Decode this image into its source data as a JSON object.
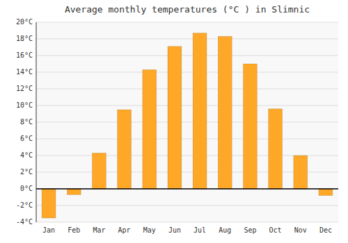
{
  "chart_data": {
    "type": "bar",
    "title": "Average monthly temperatures (°C ) in Slimnic",
    "categories": [
      "Jan",
      "Feb",
      "Mar",
      "Apr",
      "May",
      "Jun",
      "Jul",
      "Aug",
      "Sep",
      "Oct",
      "Nov",
      "Dec"
    ],
    "values": [
      -3.5,
      -0.7,
      4.3,
      9.5,
      14.3,
      17.1,
      18.7,
      18.3,
      15.0,
      9.6,
      4.0,
      -0.8
    ],
    "color": "#FFA726",
    "ylim": [
      -4,
      20
    ],
    "yticks": [
      {
        "value": -4,
        "label": "-4°C"
      },
      {
        "value": -2,
        "label": "-2°C"
      },
      {
        "value": 0,
        "label": "0°C"
      },
      {
        "value": 2,
        "label": "2°C"
      },
      {
        "value": 4,
        "label": "4°C"
      },
      {
        "value": 6,
        "label": "6°C"
      },
      {
        "value": 8,
        "label": "8°C"
      },
      {
        "value": 10,
        "label": "10°C"
      },
      {
        "value": 12,
        "label": "12°C"
      },
      {
        "value": 14,
        "label": "14°C"
      },
      {
        "value": 16,
        "label": "16°C"
      },
      {
        "value": 18,
        "label": "18°C"
      },
      {
        "value": 20,
        "label": "20°C"
      }
    ],
    "grid": true
  }
}
